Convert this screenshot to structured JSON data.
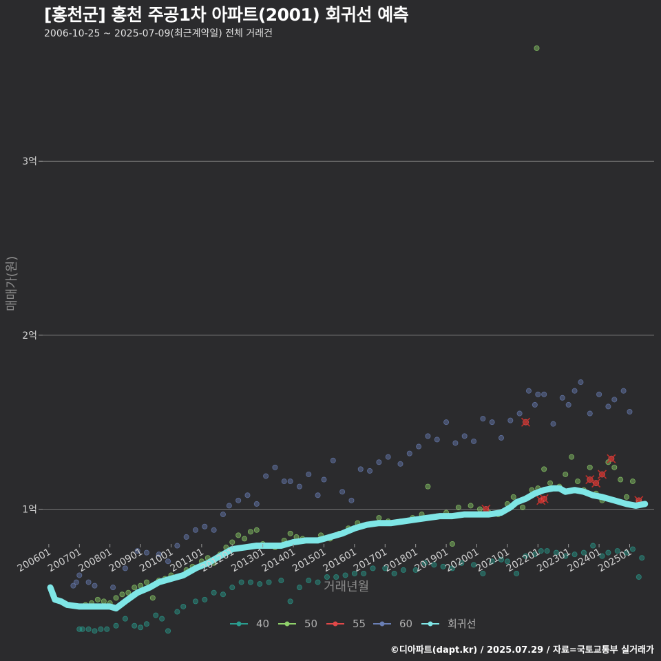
{
  "chart_data": {
    "type": "scatter",
    "title": "[홍천군] 홍천 주공1차 아파트(2001) 회귀선 예측",
    "subtitle": "2006-10-25 ~ 2025-07-09(최근계약일) 전체 거래건",
    "xlabel": "거래년월",
    "ylabel": "매매가(원)",
    "caption": "©디아파트(dapt.kr) / 2025.07.29 / 자료=국토교통부 실거래가",
    "xlim": [
      2005.8,
      2025.8
    ],
    "ylim": [
      0.8,
      3.65
    ],
    "x_ticks": [
      "200601",
      "200701",
      "200801",
      "200901",
      "201001",
      "201101",
      "201201",
      "201301",
      "201401",
      "201501",
      "201601",
      "201701",
      "201801",
      "201901",
      "202001",
      "202101",
      "202201",
      "202301",
      "202401",
      "202501"
    ],
    "y_ticks": [
      {
        "value": 1,
        "label": "1억"
      },
      {
        "value": 2,
        "label": "2억"
      },
      {
        "value": 3,
        "label": "3억"
      }
    ],
    "grid": true,
    "legend_position": "bottom",
    "legend": [
      {
        "name": "40",
        "color": "#2a9d8f"
      },
      {
        "name": "50",
        "color": "#8fd16a"
      },
      {
        "name": "55",
        "color": "#e04848"
      },
      {
        "name": "60",
        "color": "#6a7fb5"
      },
      {
        "name": "회귀선",
        "color": "#7fe6e6"
      }
    ],
    "series": [
      {
        "name": "40",
        "color": "#2a9d8f",
        "points": [
          [
            2007.0,
            0.31
          ],
          [
            2007.1,
            0.31
          ],
          [
            2007.3,
            0.31
          ],
          [
            2007.5,
            0.3
          ],
          [
            2007.7,
            0.31
          ],
          [
            2007.9,
            0.31
          ],
          [
            2008.2,
            0.33
          ],
          [
            2008.5,
            0.37
          ],
          [
            2008.8,
            0.33
          ],
          [
            2009.0,
            0.32
          ],
          [
            2009.2,
            0.34
          ],
          [
            2009.5,
            0.39
          ],
          [
            2009.7,
            0.37
          ],
          [
            2009.9,
            0.3
          ],
          [
            2010.2,
            0.41
          ],
          [
            2010.4,
            0.44
          ],
          [
            2010.8,
            0.47
          ],
          [
            2011.1,
            0.48
          ],
          [
            2011.4,
            0.52
          ],
          [
            2011.7,
            0.51
          ],
          [
            2012.0,
            0.55
          ],
          [
            2012.3,
            0.58
          ],
          [
            2012.6,
            0.58
          ],
          [
            2012.9,
            0.57
          ],
          [
            2013.2,
            0.58
          ],
          [
            2013.6,
            0.59
          ],
          [
            2013.9,
            0.47
          ],
          [
            2014.2,
            0.55
          ],
          [
            2014.5,
            0.59
          ],
          [
            2014.8,
            0.58
          ],
          [
            2015.1,
            0.61
          ],
          [
            2015.4,
            0.61
          ],
          [
            2015.7,
            0.62
          ],
          [
            2016.0,
            0.63
          ],
          [
            2016.3,
            0.63
          ],
          [
            2016.6,
            0.66
          ],
          [
            2017.0,
            0.66
          ],
          [
            2017.3,
            0.63
          ],
          [
            2017.6,
            0.65
          ],
          [
            2018.0,
            0.65
          ],
          [
            2018.3,
            0.69
          ],
          [
            2018.6,
            0.68
          ],
          [
            2018.9,
            0.67
          ],
          [
            2019.2,
            0.66
          ],
          [
            2019.5,
            0.69
          ],
          [
            2019.9,
            0.68
          ],
          [
            2020.2,
            0.63
          ],
          [
            2020.5,
            0.7
          ],
          [
            2020.8,
            0.71
          ],
          [
            2021.0,
            0.7
          ],
          [
            2021.3,
            0.63
          ],
          [
            2021.6,
            0.73
          ],
          [
            2021.9,
            0.74
          ],
          [
            2022.1,
            0.76
          ],
          [
            2022.3,
            0.76
          ],
          [
            2022.6,
            0.75
          ],
          [
            2022.9,
            0.73
          ],
          [
            2023.2,
            0.74
          ],
          [
            2023.5,
            0.75
          ],
          [
            2023.8,
            0.79
          ],
          [
            2024.1,
            0.73
          ],
          [
            2024.3,
            0.75
          ],
          [
            2024.6,
            0.76
          ],
          [
            2024.9,
            0.75
          ],
          [
            2025.1,
            0.77
          ],
          [
            2025.3,
            0.61
          ],
          [
            2025.4,
            0.72
          ]
        ]
      },
      {
        "name": "50",
        "color": "#8fd16a",
        "points": [
          [
            2007.2,
            0.45
          ],
          [
            2007.4,
            0.46
          ],
          [
            2007.6,
            0.48
          ],
          [
            2007.8,
            0.47
          ],
          [
            2008.0,
            0.46
          ],
          [
            2008.2,
            0.49
          ],
          [
            2008.4,
            0.51
          ],
          [
            2008.6,
            0.52
          ],
          [
            2008.8,
            0.55
          ],
          [
            2009.0,
            0.56
          ],
          [
            2009.2,
            0.58
          ],
          [
            2009.4,
            0.49
          ],
          [
            2009.6,
            0.59
          ],
          [
            2009.8,
            0.6
          ],
          [
            2010.0,
            0.62
          ],
          [
            2010.2,
            0.61
          ],
          [
            2010.5,
            0.65
          ],
          [
            2010.7,
            0.67
          ],
          [
            2011.0,
            0.7
          ],
          [
            2011.2,
            0.72
          ],
          [
            2011.4,
            0.69
          ],
          [
            2011.6,
            0.74
          ],
          [
            2011.8,
            0.78
          ],
          [
            2012.0,
            0.81
          ],
          [
            2012.2,
            0.85
          ],
          [
            2012.4,
            0.83
          ],
          [
            2012.6,
            0.87
          ],
          [
            2012.8,
            0.88
          ],
          [
            2013.0,
            0.8
          ],
          [
            2013.2,
            0.79
          ],
          [
            2013.4,
            0.78
          ],
          [
            2013.7,
            0.82
          ],
          [
            2013.9,
            0.86
          ],
          [
            2014.1,
            0.84
          ],
          [
            2014.3,
            0.83
          ],
          [
            2014.6,
            0.82
          ],
          [
            2014.9,
            0.85
          ],
          [
            2015.2,
            0.83
          ],
          [
            2015.5,
            0.86
          ],
          [
            2015.8,
            0.89
          ],
          [
            2016.1,
            0.92
          ],
          [
            2016.4,
            0.91
          ],
          [
            2016.8,
            0.95
          ],
          [
            2017.1,
            0.93
          ],
          [
            2017.5,
            0.93
          ],
          [
            2017.9,
            0.95
          ],
          [
            2018.2,
            0.97
          ],
          [
            2018.4,
            1.13
          ],
          [
            2018.7,
            0.96
          ],
          [
            2019.0,
            0.98
          ],
          [
            2019.2,
            0.8
          ],
          [
            2019.4,
            1.01
          ],
          [
            2019.8,
            1.02
          ],
          [
            2020.1,
            1.0
          ],
          [
            2020.4,
            0.98
          ],
          [
            2020.7,
            0.97
          ],
          [
            2021.0,
            1.03
          ],
          [
            2021.2,
            1.07
          ],
          [
            2021.5,
            1.01
          ],
          [
            2021.8,
            1.11
          ],
          [
            2022.0,
            1.12
          ],
          [
            2022.2,
            1.23
          ],
          [
            2022.4,
            1.15
          ],
          [
            2022.7,
            1.13
          ],
          [
            2022.9,
            1.2
          ],
          [
            2023.1,
            1.3
          ],
          [
            2023.3,
            1.16
          ],
          [
            2023.5,
            1.11
          ],
          [
            2023.7,
            1.24
          ],
          [
            2023.9,
            1.09
          ],
          [
            2024.1,
            1.05
          ],
          [
            2024.3,
            1.27
          ],
          [
            2024.5,
            1.24
          ],
          [
            2024.7,
            1.17
          ],
          [
            2024.9,
            1.07
          ],
          [
            2025.1,
            1.16
          ],
          [
            2025.3,
            1.04
          ],
          [
            2021.96,
            3.65
          ]
        ]
      },
      {
        "name": "55",
        "color": "#e04848",
        "points": [
          [
            2020.3,
            1.0
          ],
          [
            2021.6,
            1.5
          ],
          [
            2022.1,
            1.05
          ],
          [
            2022.2,
            1.06
          ],
          [
            2023.7,
            1.17
          ],
          [
            2023.9,
            1.15
          ],
          [
            2024.1,
            1.2
          ],
          [
            2024.4,
            1.29
          ],
          [
            2025.3,
            1.05
          ]
        ]
      },
      {
        "name": "60",
        "color": "#6a7fb5",
        "points": [
          [
            2006.8,
            0.56
          ],
          [
            2006.9,
            0.58
          ],
          [
            2007.0,
            0.62
          ],
          [
            2007.3,
            0.58
          ],
          [
            2007.5,
            0.56
          ],
          [
            2008.1,
            0.55
          ],
          [
            2008.5,
            0.66
          ],
          [
            2008.9,
            0.76
          ],
          [
            2009.2,
            0.75
          ],
          [
            2009.6,
            0.74
          ],
          [
            2009.9,
            0.7
          ],
          [
            2010.2,
            0.79
          ],
          [
            2010.5,
            0.84
          ],
          [
            2010.8,
            0.88
          ],
          [
            2011.1,
            0.9
          ],
          [
            2011.4,
            0.88
          ],
          [
            2011.7,
            0.97
          ],
          [
            2011.9,
            1.02
          ],
          [
            2012.2,
            1.05
          ],
          [
            2012.5,
            1.08
          ],
          [
            2012.8,
            1.03
          ],
          [
            2013.1,
            1.19
          ],
          [
            2013.4,
            1.24
          ],
          [
            2013.7,
            1.16
          ],
          [
            2013.9,
            1.16
          ],
          [
            2014.2,
            1.13
          ],
          [
            2014.5,
            1.2
          ],
          [
            2014.8,
            1.08
          ],
          [
            2015.0,
            1.17
          ],
          [
            2015.3,
            1.28
          ],
          [
            2015.6,
            1.1
          ],
          [
            2015.9,
            1.05
          ],
          [
            2016.2,
            1.23
          ],
          [
            2016.5,
            1.22
          ],
          [
            2016.8,
            1.27
          ],
          [
            2017.1,
            1.3
          ],
          [
            2017.5,
            1.26
          ],
          [
            2017.8,
            1.32
          ],
          [
            2018.1,
            1.36
          ],
          [
            2018.4,
            1.42
          ],
          [
            2018.7,
            1.4
          ],
          [
            2019.0,
            1.5
          ],
          [
            2019.3,
            1.38
          ],
          [
            2019.6,
            1.42
          ],
          [
            2019.9,
            1.39
          ],
          [
            2020.2,
            1.52
          ],
          [
            2020.5,
            1.5
          ],
          [
            2020.8,
            1.41
          ],
          [
            2021.1,
            1.51
          ],
          [
            2021.4,
            1.55
          ],
          [
            2021.7,
            1.68
          ],
          [
            2021.9,
            1.6
          ],
          [
            2022.0,
            1.66
          ],
          [
            2022.2,
            1.66
          ],
          [
            2022.5,
            1.49
          ],
          [
            2022.8,
            1.64
          ],
          [
            2023.0,
            1.6
          ],
          [
            2023.2,
            1.68
          ],
          [
            2023.4,
            1.73
          ],
          [
            2023.7,
            1.55
          ],
          [
            2024.0,
            1.66
          ],
          [
            2024.3,
            1.59
          ],
          [
            2024.5,
            1.63
          ],
          [
            2024.8,
            1.68
          ],
          [
            2025.0,
            1.56
          ]
        ]
      }
    ],
    "regression_line": [
      [
        2006.05,
        0.55
      ],
      [
        2006.2,
        0.48
      ],
      [
        2006.4,
        0.47
      ],
      [
        2006.6,
        0.45
      ],
      [
        2007.0,
        0.44
      ],
      [
        2007.5,
        0.44
      ],
      [
        2008.0,
        0.44
      ],
      [
        2008.2,
        0.43
      ],
      [
        2008.5,
        0.47
      ],
      [
        2008.9,
        0.52
      ],
      [
        2009.3,
        0.55
      ],
      [
        2009.6,
        0.58
      ],
      [
        2010.0,
        0.6
      ],
      [
        2010.4,
        0.62
      ],
      [
        2010.8,
        0.66
      ],
      [
        2011.2,
        0.69
      ],
      [
        2011.6,
        0.73
      ],
      [
        2012.0,
        0.77
      ],
      [
        2012.4,
        0.78
      ],
      [
        2012.8,
        0.79
      ],
      [
        2013.2,
        0.79
      ],
      [
        2013.6,
        0.79
      ],
      [
        2014.0,
        0.81
      ],
      [
        2014.4,
        0.82
      ],
      [
        2014.8,
        0.82
      ],
      [
        2015.2,
        0.84
      ],
      [
        2015.6,
        0.86
      ],
      [
        2016.0,
        0.89
      ],
      [
        2016.4,
        0.91
      ],
      [
        2016.8,
        0.92
      ],
      [
        2017.2,
        0.92
      ],
      [
        2017.6,
        0.93
      ],
      [
        2018.0,
        0.94
      ],
      [
        2018.4,
        0.95
      ],
      [
        2018.8,
        0.96
      ],
      [
        2019.2,
        0.96
      ],
      [
        2019.6,
        0.97
      ],
      [
        2020.0,
        0.97
      ],
      [
        2020.4,
        0.97
      ],
      [
        2020.8,
        0.98
      ],
      [
        2021.1,
        1.01
      ],
      [
        2021.3,
        1.04
      ],
      [
        2021.6,
        1.06
      ],
      [
        2021.9,
        1.09
      ],
      [
        2022.2,
        1.11
      ],
      [
        2022.5,
        1.12
      ],
      [
        2022.7,
        1.12
      ],
      [
        2022.9,
        1.1
      ],
      [
        2023.2,
        1.11
      ],
      [
        2023.5,
        1.1
      ],
      [
        2023.8,
        1.08
      ],
      [
        2024.1,
        1.07
      ],
      [
        2024.5,
        1.05
      ],
      [
        2024.9,
        1.03
      ],
      [
        2025.2,
        1.02
      ],
      [
        2025.5,
        1.03
      ]
    ]
  }
}
